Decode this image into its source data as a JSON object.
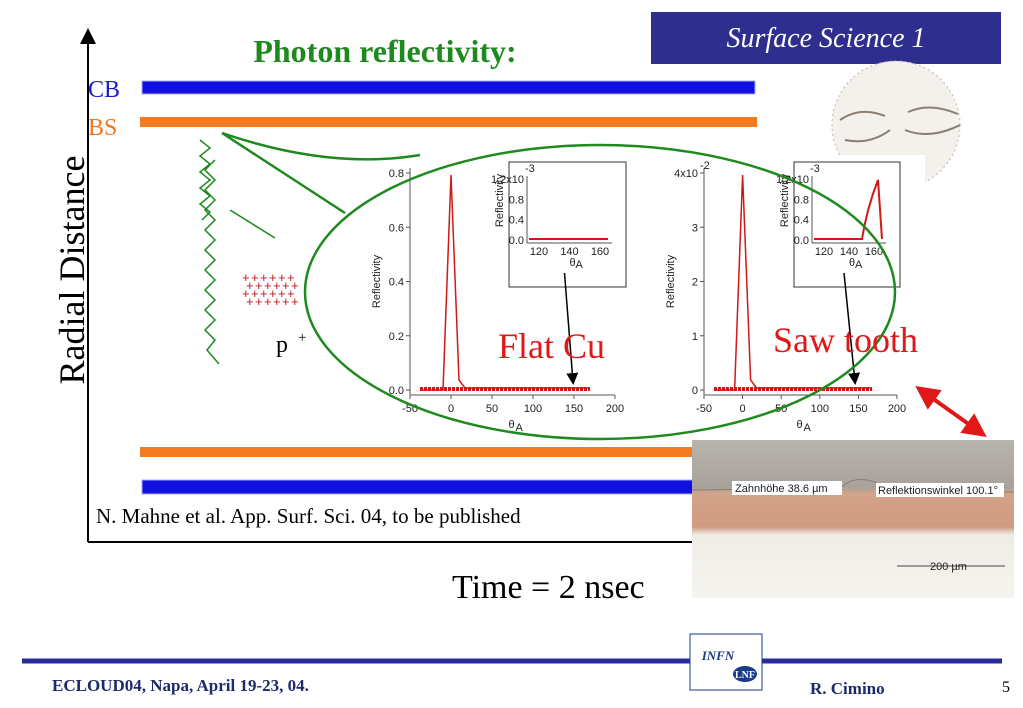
{
  "slide": {
    "title": "Photon reflectivity:",
    "tag": "Surface Science 1",
    "labels": {
      "cb": "CB",
      "bs": "BS",
      "y_axis": "Radial Distance",
      "x_axis": "Time = 2 nsec",
      "proton": "p",
      "proton_sup": "+"
    },
    "citation": "N. Mahne et al. App. Surf. Sci. 04, to be published",
    "plots": [
      {
        "ylabel": "Reflectivity",
        "xlabel": "θ",
        "xlabel_sub": "A",
        "yticks": [
          "0.0",
          "0.2",
          "0.4",
          "0.6",
          "0.8"
        ],
        "xticks": [
          "-50",
          "0",
          "50",
          "100",
          "150",
          "200"
        ],
        "caption": "Flat Cu",
        "inset": {
          "ylabel": "Reflectivity",
          "yticks": [
            "0.0",
            "0.4",
            "0.8",
            "1.2x10"
          ],
          "exp": "-3",
          "xticks": [
            "120",
            "140",
            "160"
          ],
          "xlabel": "θ",
          "xlabel_sub": "A"
        }
      },
      {
        "ylabel": "Reflectivity",
        "xlabel": "θ",
        "xlabel_sub": "A",
        "yticks": [
          "0",
          "1",
          "2",
          "3",
          "4x10"
        ],
        "exp": "-2",
        "xticks": [
          "-50",
          "0",
          "50",
          "100",
          "150",
          "200"
        ],
        "caption": "Saw tooth",
        "inset": {
          "ylabel": "Reflectivity",
          "yticks": [
            "0.0",
            "0.4",
            "0.8",
            "1.2x10"
          ],
          "exp": "-3",
          "xticks": [
            "120",
            "140",
            "160"
          ],
          "xlabel": "θ",
          "xlabel_sub": "A"
        }
      }
    ],
    "micrograph": {
      "label1": "Zahnhöhe 38.6 µm",
      "label2": "Reflektionswinkel 100.1°",
      "scale": "200 µm"
    },
    "footer": {
      "event": "ECLOUD04, Napa, April 19-23, 04.",
      "author": "R. Cimino",
      "page": "5",
      "logo_top": "INFN",
      "logo_bottom": "LNF"
    }
  }
}
